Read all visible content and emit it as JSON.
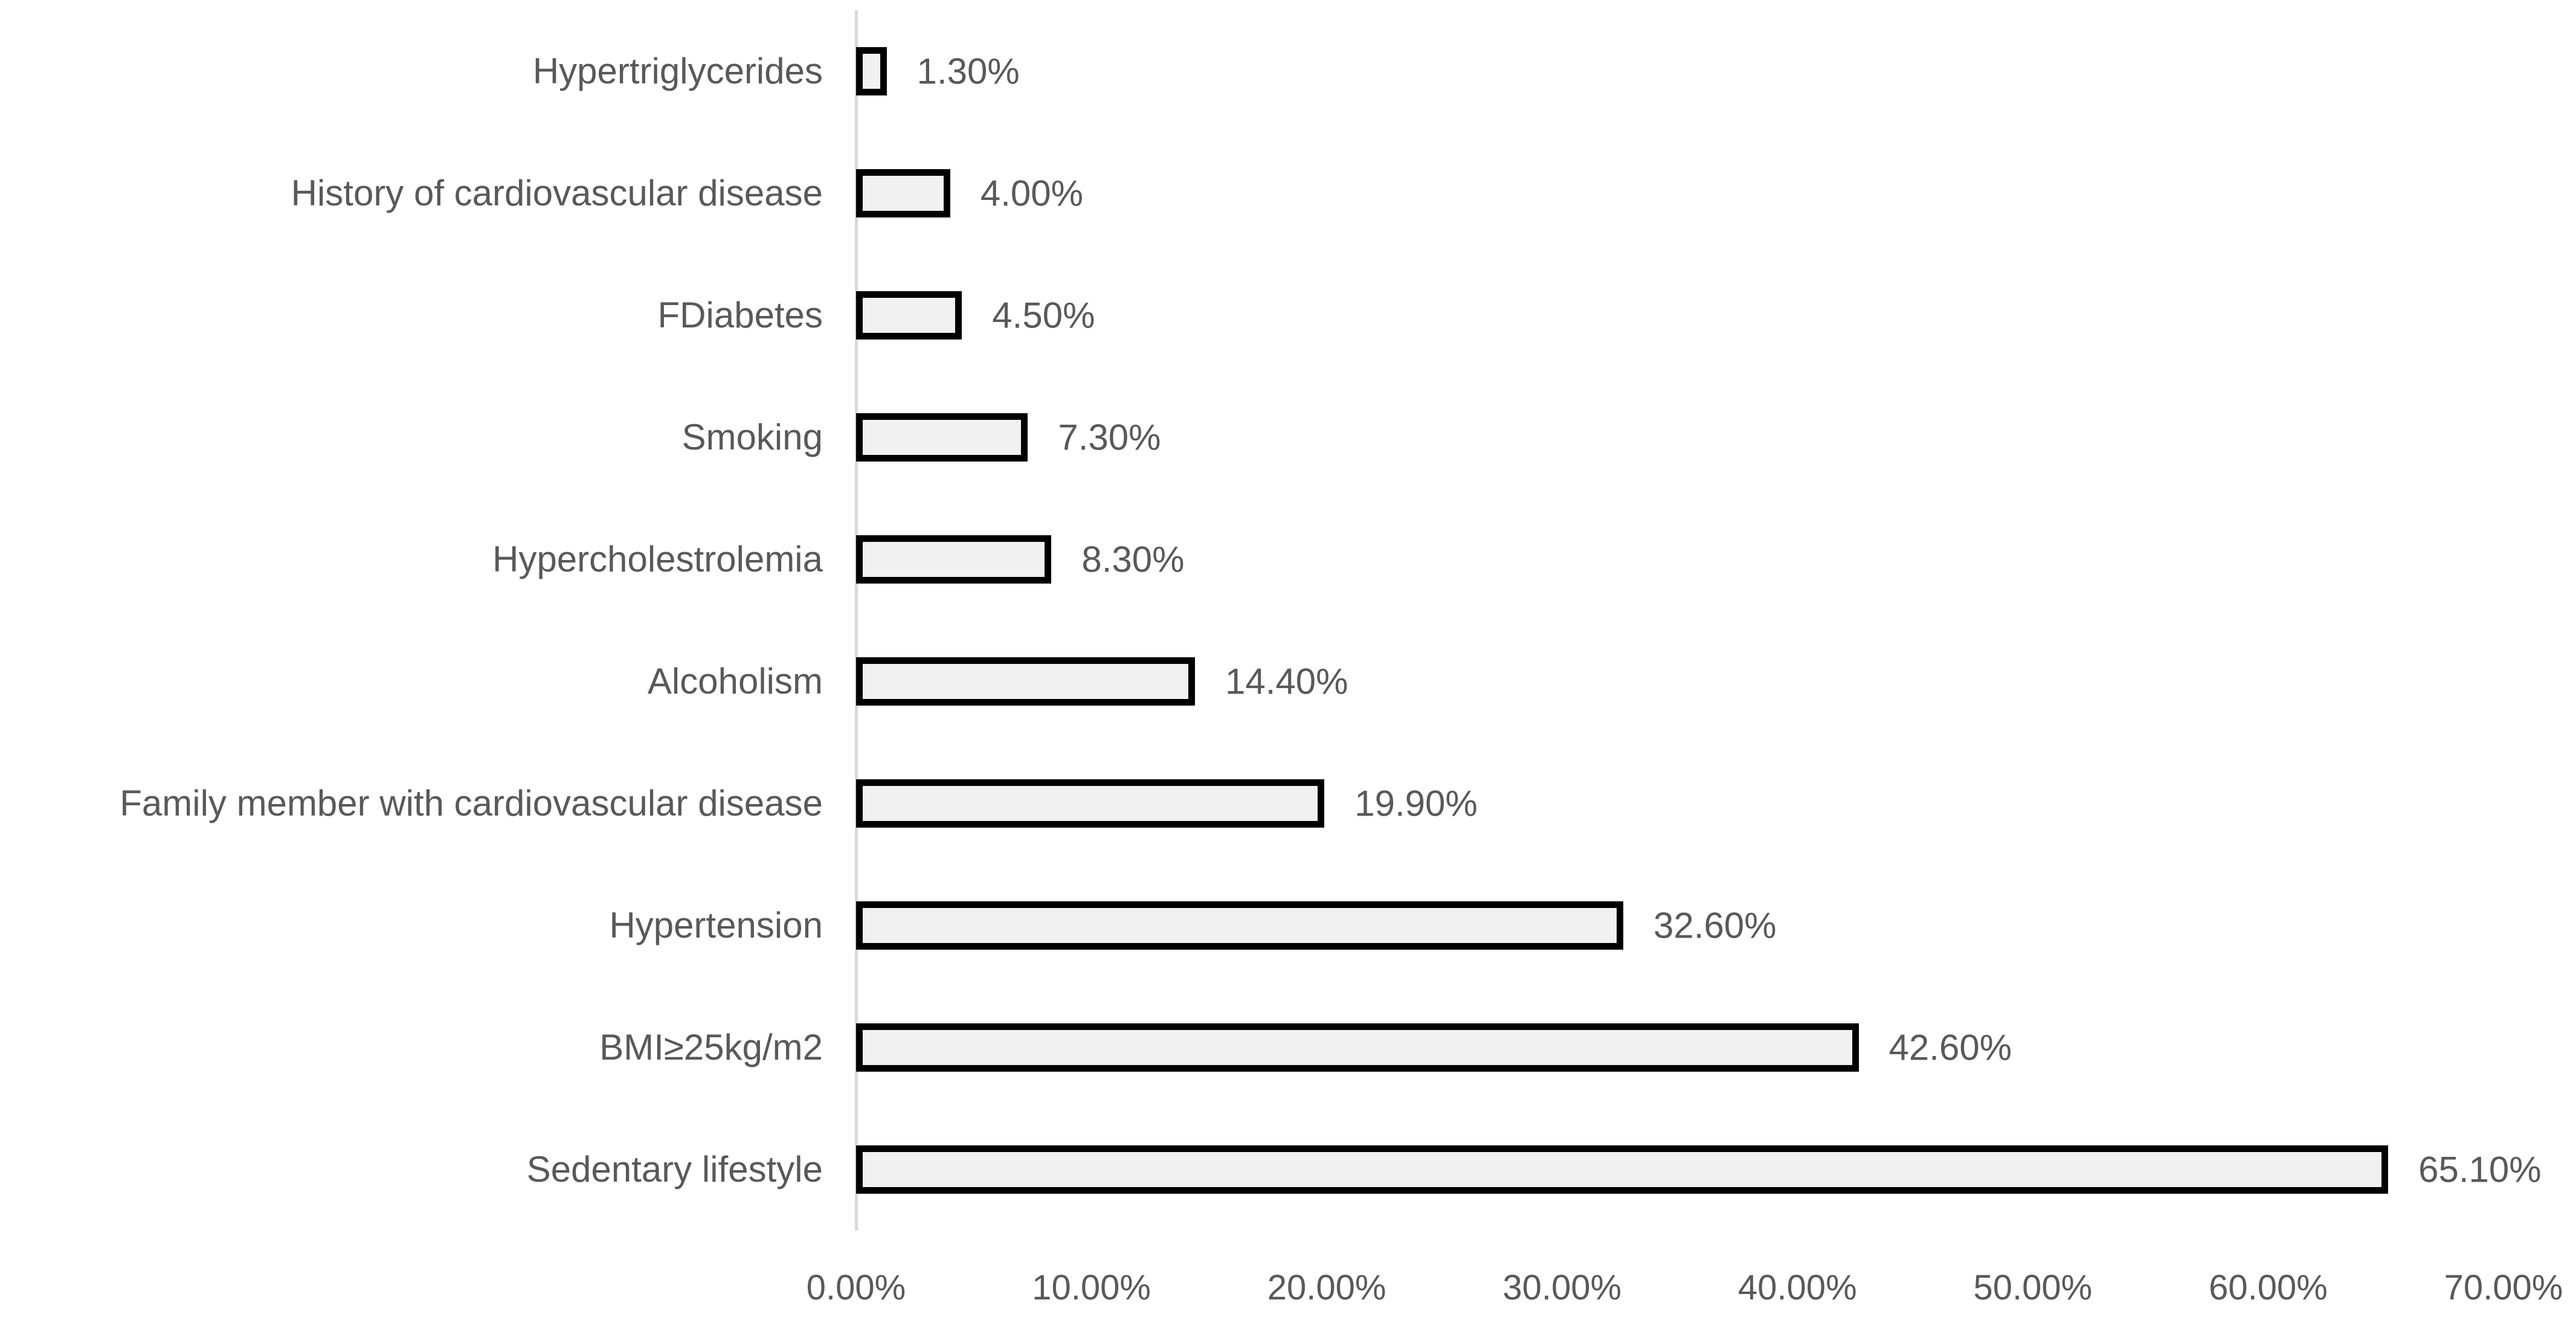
{
  "chart_data": {
    "type": "bar",
    "orientation": "horizontal",
    "title": "",
    "xlabel": "",
    "ylabel": "",
    "categories": [
      "Hypertriglycerides",
      "History of cardiovascular disease",
      "FDiabetes",
      "Smoking",
      "Hypercholestrolemia",
      "Alcoholism",
      "Family member with cardiovascular disease",
      "Hypertension",
      "BMI≥25kg/m2",
      "Sedentary lifestyle"
    ],
    "values": [
      1.3,
      4.0,
      4.5,
      7.3,
      8.3,
      14.4,
      19.9,
      32.6,
      42.6,
      65.1
    ],
    "value_labels": [
      "1.30%",
      "4.00%",
      "4.50%",
      "7.30%",
      "8.30%",
      "14.40%",
      "19.90%",
      "32.60%",
      "42.60%",
      "65.10%"
    ],
    "xlim": [
      0,
      70
    ],
    "x_ticks": [
      "0.00%",
      "10.00%",
      "20.00%",
      "30.00%",
      "40.00%",
      "50.00%",
      "60.00%",
      "70.00%"
    ],
    "grid": false,
    "legend": "none",
    "colors": {
      "bar_fill": "#f1f1f1",
      "bar_border": "#000000",
      "text": "#595959",
      "axis_line": "#d9d9d9",
      "background": "#ffffff"
    }
  }
}
